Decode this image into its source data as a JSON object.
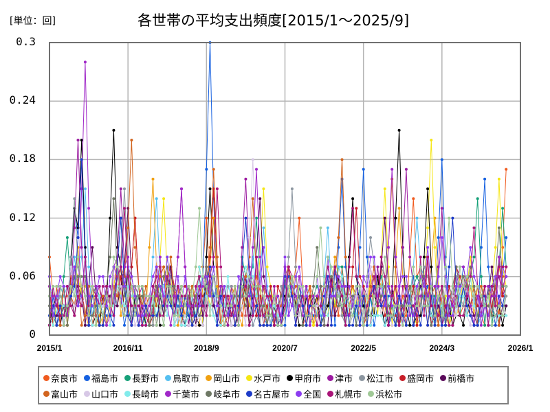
{
  "header": {
    "unit_label": "[単位：回]",
    "title": "各世帯の平均支出頻度[2015/1～2025/9]"
  },
  "chart_data": {
    "type": "line",
    "title": "各世帯の平均支出頻度[2015/1～2025/9]",
    "xlabel": "",
    "ylabel": "[単位：回]",
    "ylim": [
      0,
      0.3
    ],
    "yticks": [
      "0",
      "0.06",
      "0.12",
      "0.18",
      "0.24",
      "0.3"
    ],
    "xticks": [
      "2015/1",
      "2016/11",
      "2018/9",
      "2020/7",
      "2022/5",
      "2024/3",
      "2026/1"
    ],
    "x_start": "2015/1",
    "x_end": "2025/9",
    "months": 129,
    "grid": true,
    "legend_position": "bottom",
    "series": [
      {
        "name": "奈良市",
        "color": "#f05a1e",
        "peaks": [
          [
            0,
            0.08
          ],
          [
            24,
            0.12
          ],
          [
            44,
            0.12
          ],
          [
            70,
            0.12
          ],
          [
            102,
            0.14
          ],
          [
            128,
            0.17
          ]
        ],
        "base": 0.03
      },
      {
        "name": "福島市",
        "color": "#1560e0",
        "peaks": [
          [
            7,
            0.13
          ],
          [
            9,
            0.18
          ],
          [
            45,
            0.3
          ],
          [
            82,
            0.16
          ],
          [
            88,
            0.17
          ],
          [
            110,
            0.18
          ],
          [
            122,
            0.16
          ],
          [
            128,
            0.1
          ]
        ],
        "base": 0.02
      },
      {
        "name": "長野市",
        "color": "#16a078",
        "peaks": [
          [
            5,
            0.1
          ],
          [
            20,
            0.12
          ],
          [
            58,
            0.12
          ],
          [
            120,
            0.14
          ],
          [
            127,
            0.13
          ]
        ],
        "base": 0.03
      },
      {
        "name": "鳥取市",
        "color": "#55bff0",
        "peaks": [
          [
            10,
            0.15
          ],
          [
            30,
            0.14
          ],
          [
            60,
            0.11
          ],
          [
            78,
            0.11
          ],
          [
            103,
            0.12
          ]
        ],
        "base": 0.03
      },
      {
        "name": "岡山市",
        "color": "#f0a010",
        "peaks": [
          [
            8,
            0.09
          ],
          [
            29,
            0.16
          ],
          [
            46,
            0.12
          ],
          [
            98,
            0.13
          ],
          [
            108,
            0.12
          ]
        ],
        "base": 0.03
      },
      {
        "name": "水戸市",
        "color": "#f5e614",
        "peaks": [
          [
            32,
            0.14
          ],
          [
            60,
            0.15
          ],
          [
            94,
            0.15
          ],
          [
            107,
            0.2
          ],
          [
            126,
            0.16
          ]
        ],
        "base": 0.03
      },
      {
        "name": "甲府市",
        "color": "#000000",
        "peaks": [
          [
            7,
            0.13
          ],
          [
            9,
            0.2
          ],
          [
            18,
            0.21
          ],
          [
            45,
            0.15
          ],
          [
            85,
            0.14
          ],
          [
            98,
            0.21
          ],
          [
            106,
            0.15
          ]
        ],
        "base": 0.02
      },
      {
        "name": "津市",
        "color": "#9b1aa0",
        "peaks": [
          [
            8,
            0.2
          ],
          [
            20,
            0.15
          ],
          [
            37,
            0.15
          ],
          [
            55,
            0.16
          ],
          [
            100,
            0.17
          ],
          [
            110,
            0.13
          ]
        ],
        "base": 0.03
      },
      {
        "name": "松江市",
        "color": "#8c96a0",
        "peaks": [
          [
            7,
            0.14
          ],
          [
            21,
            0.15
          ],
          [
            68,
            0.15
          ],
          [
            90,
            0.1
          ]
        ],
        "base": 0.03
      },
      {
        "name": "盛岡市",
        "color": "#c81e28",
        "peaks": [
          [
            24,
            0.12
          ],
          [
            46,
            0.15
          ],
          [
            86,
            0.13
          ],
          [
            128,
            0.07
          ]
        ],
        "base": 0.03
      },
      {
        "name": "前橋市",
        "color": "#5a0a5a",
        "peaks": [
          [
            12,
            0.09
          ],
          [
            22,
            0.13
          ],
          [
            59,
            0.14
          ],
          [
            94,
            0.12
          ],
          [
            124,
            0.07
          ]
        ],
        "base": 0.02
      },
      {
        "name": "富山市",
        "color": "#d2641e",
        "peaks": [
          [
            23,
            0.2
          ],
          [
            46,
            0.17
          ],
          [
            57,
            0.14
          ],
          [
            82,
            0.18
          ],
          [
            96,
            0.16
          ],
          [
            128,
            0.06
          ]
        ],
        "base": 0.03
      },
      {
        "name": "山口市",
        "color": "#d7c8e6",
        "peaks": [
          [
            57,
            0.18
          ],
          [
            30,
            0.08
          ],
          [
            90,
            0.07
          ]
        ],
        "base": 0.02
      },
      {
        "name": "長崎市",
        "color": "#82ebeb",
        "peaks": [
          [
            10,
            0.08
          ],
          [
            50,
            0.06
          ],
          [
            100,
            0.05
          ]
        ],
        "base": 0.02
      },
      {
        "name": "千葉市",
        "color": "#a028c8",
        "peaks": [
          [
            10,
            0.28
          ],
          [
            37,
            0.15
          ],
          [
            58,
            0.17
          ],
          [
            96,
            0.17
          ]
        ],
        "base": 0.03
      },
      {
        "name": "岐阜市",
        "color": "#6e7864",
        "peaks": [
          [
            18,
            0.14
          ],
          [
            75,
            0.09
          ],
          [
            126,
            0.11
          ]
        ],
        "base": 0.03
      },
      {
        "name": "名古屋市",
        "color": "#1e3cc8",
        "peaks": [
          [
            9,
            0.18
          ],
          [
            20,
            0.12
          ],
          [
            55,
            0.12
          ],
          [
            113,
            0.12
          ]
        ],
        "base": 0.02
      },
      {
        "name": "全国",
        "color": "#8c3cf0",
        "peaks": [
          [
            10,
            0.08
          ],
          [
            60,
            0.09
          ],
          [
            110,
            0.1
          ]
        ],
        "base": 0.04
      },
      {
        "name": "札幌市",
        "color": "#aa1478",
        "peaks": [
          [
            21,
            0.13
          ],
          [
            47,
            0.15
          ],
          [
            85,
            0.13
          ],
          [
            119,
            0.11
          ]
        ],
        "base": 0.03
      },
      {
        "name": "浜松市",
        "color": "#a0c896",
        "peaks": [
          [
            8,
            0.08
          ],
          [
            42,
            0.13
          ],
          [
            76,
            0.11
          ],
          [
            112,
            0.12
          ]
        ],
        "base": 0.03
      }
    ]
  },
  "legend": {
    "row1": [
      {
        "label": "奈良市",
        "color": "#f05a1e"
      },
      {
        "label": "福島市",
        "color": "#1560e0"
      },
      {
        "label": "長野市",
        "color": "#16a078"
      },
      {
        "label": "鳥取市",
        "color": "#55bff0"
      },
      {
        "label": "岡山市",
        "color": "#f0a010"
      },
      {
        "label": "水戸市",
        "color": "#f5e614"
      },
      {
        "label": "甲府市",
        "color": "#000000"
      },
      {
        "label": "津市",
        "color": "#9b1aa0"
      },
      {
        "label": "松江市",
        "color": "#8c96a0"
      },
      {
        "label": "盛岡市",
        "color": "#c81e28"
      },
      {
        "label": "前橋市",
        "color": "#5a0a5a"
      }
    ],
    "row2": [
      {
        "label": "富山市",
        "color": "#d2641e"
      },
      {
        "label": "山口市",
        "color": "#d7c8e6"
      },
      {
        "label": "長崎市",
        "color": "#82ebeb"
      },
      {
        "label": "千葉市",
        "color": "#a028c8"
      },
      {
        "label": "岐阜市",
        "color": "#6e7864"
      },
      {
        "label": "名古屋市",
        "color": "#1e3cc8"
      },
      {
        "label": "全国",
        "color": "#8c3cf0"
      },
      {
        "label": "札幌市",
        "color": "#aa1478"
      },
      {
        "label": "浜松市",
        "color": "#a0c896"
      }
    ]
  }
}
